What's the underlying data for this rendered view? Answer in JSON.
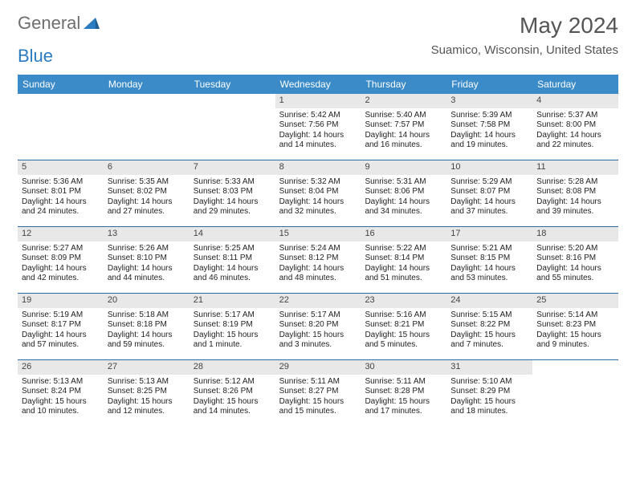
{
  "brand": {
    "part1": "General",
    "part2": "Blue"
  },
  "title": "May 2024",
  "location": "Suamico, Wisconsin, United States",
  "colors": {
    "header_bg": "#3b8bc9",
    "header_text": "#ffffff",
    "week_divider": "#2a6aa3",
    "daynum_bg": "#e8e8e8",
    "text": "#222222",
    "brand_gray": "#6e6e6e",
    "brand_blue": "#2a7bbf"
  },
  "dayNames": [
    "Sunday",
    "Monday",
    "Tuesday",
    "Wednesday",
    "Thursday",
    "Friday",
    "Saturday"
  ],
  "weeks": [
    [
      {
        "empty": true
      },
      {
        "empty": true
      },
      {
        "empty": true
      },
      {
        "n": "1",
        "sr": "Sunrise: 5:42 AM",
        "ss": "Sunset: 7:56 PM",
        "dl": "Daylight: 14 hours and 14 minutes."
      },
      {
        "n": "2",
        "sr": "Sunrise: 5:40 AM",
        "ss": "Sunset: 7:57 PM",
        "dl": "Daylight: 14 hours and 16 minutes."
      },
      {
        "n": "3",
        "sr": "Sunrise: 5:39 AM",
        "ss": "Sunset: 7:58 PM",
        "dl": "Daylight: 14 hours and 19 minutes."
      },
      {
        "n": "4",
        "sr": "Sunrise: 5:37 AM",
        "ss": "Sunset: 8:00 PM",
        "dl": "Daylight: 14 hours and 22 minutes."
      }
    ],
    [
      {
        "n": "5",
        "sr": "Sunrise: 5:36 AM",
        "ss": "Sunset: 8:01 PM",
        "dl": "Daylight: 14 hours and 24 minutes."
      },
      {
        "n": "6",
        "sr": "Sunrise: 5:35 AM",
        "ss": "Sunset: 8:02 PM",
        "dl": "Daylight: 14 hours and 27 minutes."
      },
      {
        "n": "7",
        "sr": "Sunrise: 5:33 AM",
        "ss": "Sunset: 8:03 PM",
        "dl": "Daylight: 14 hours and 29 minutes."
      },
      {
        "n": "8",
        "sr": "Sunrise: 5:32 AM",
        "ss": "Sunset: 8:04 PM",
        "dl": "Daylight: 14 hours and 32 minutes."
      },
      {
        "n": "9",
        "sr": "Sunrise: 5:31 AM",
        "ss": "Sunset: 8:06 PM",
        "dl": "Daylight: 14 hours and 34 minutes."
      },
      {
        "n": "10",
        "sr": "Sunrise: 5:29 AM",
        "ss": "Sunset: 8:07 PM",
        "dl": "Daylight: 14 hours and 37 minutes."
      },
      {
        "n": "11",
        "sr": "Sunrise: 5:28 AM",
        "ss": "Sunset: 8:08 PM",
        "dl": "Daylight: 14 hours and 39 minutes."
      }
    ],
    [
      {
        "n": "12",
        "sr": "Sunrise: 5:27 AM",
        "ss": "Sunset: 8:09 PM",
        "dl": "Daylight: 14 hours and 42 minutes."
      },
      {
        "n": "13",
        "sr": "Sunrise: 5:26 AM",
        "ss": "Sunset: 8:10 PM",
        "dl": "Daylight: 14 hours and 44 minutes."
      },
      {
        "n": "14",
        "sr": "Sunrise: 5:25 AM",
        "ss": "Sunset: 8:11 PM",
        "dl": "Daylight: 14 hours and 46 minutes."
      },
      {
        "n": "15",
        "sr": "Sunrise: 5:24 AM",
        "ss": "Sunset: 8:12 PM",
        "dl": "Daylight: 14 hours and 48 minutes."
      },
      {
        "n": "16",
        "sr": "Sunrise: 5:22 AM",
        "ss": "Sunset: 8:14 PM",
        "dl": "Daylight: 14 hours and 51 minutes."
      },
      {
        "n": "17",
        "sr": "Sunrise: 5:21 AM",
        "ss": "Sunset: 8:15 PM",
        "dl": "Daylight: 14 hours and 53 minutes."
      },
      {
        "n": "18",
        "sr": "Sunrise: 5:20 AM",
        "ss": "Sunset: 8:16 PM",
        "dl": "Daylight: 14 hours and 55 minutes."
      }
    ],
    [
      {
        "n": "19",
        "sr": "Sunrise: 5:19 AM",
        "ss": "Sunset: 8:17 PM",
        "dl": "Daylight: 14 hours and 57 minutes."
      },
      {
        "n": "20",
        "sr": "Sunrise: 5:18 AM",
        "ss": "Sunset: 8:18 PM",
        "dl": "Daylight: 14 hours and 59 minutes."
      },
      {
        "n": "21",
        "sr": "Sunrise: 5:17 AM",
        "ss": "Sunset: 8:19 PM",
        "dl": "Daylight: 15 hours and 1 minute."
      },
      {
        "n": "22",
        "sr": "Sunrise: 5:17 AM",
        "ss": "Sunset: 8:20 PM",
        "dl": "Daylight: 15 hours and 3 minutes."
      },
      {
        "n": "23",
        "sr": "Sunrise: 5:16 AM",
        "ss": "Sunset: 8:21 PM",
        "dl": "Daylight: 15 hours and 5 minutes."
      },
      {
        "n": "24",
        "sr": "Sunrise: 5:15 AM",
        "ss": "Sunset: 8:22 PM",
        "dl": "Daylight: 15 hours and 7 minutes."
      },
      {
        "n": "25",
        "sr": "Sunrise: 5:14 AM",
        "ss": "Sunset: 8:23 PM",
        "dl": "Daylight: 15 hours and 9 minutes."
      }
    ],
    [
      {
        "n": "26",
        "sr": "Sunrise: 5:13 AM",
        "ss": "Sunset: 8:24 PM",
        "dl": "Daylight: 15 hours and 10 minutes."
      },
      {
        "n": "27",
        "sr": "Sunrise: 5:13 AM",
        "ss": "Sunset: 8:25 PM",
        "dl": "Daylight: 15 hours and 12 minutes."
      },
      {
        "n": "28",
        "sr": "Sunrise: 5:12 AM",
        "ss": "Sunset: 8:26 PM",
        "dl": "Daylight: 15 hours and 14 minutes."
      },
      {
        "n": "29",
        "sr": "Sunrise: 5:11 AM",
        "ss": "Sunset: 8:27 PM",
        "dl": "Daylight: 15 hours and 15 minutes."
      },
      {
        "n": "30",
        "sr": "Sunrise: 5:11 AM",
        "ss": "Sunset: 8:28 PM",
        "dl": "Daylight: 15 hours and 17 minutes."
      },
      {
        "n": "31",
        "sr": "Sunrise: 5:10 AM",
        "ss": "Sunset: 8:29 PM",
        "dl": "Daylight: 15 hours and 18 minutes."
      },
      {
        "empty": true
      }
    ]
  ]
}
